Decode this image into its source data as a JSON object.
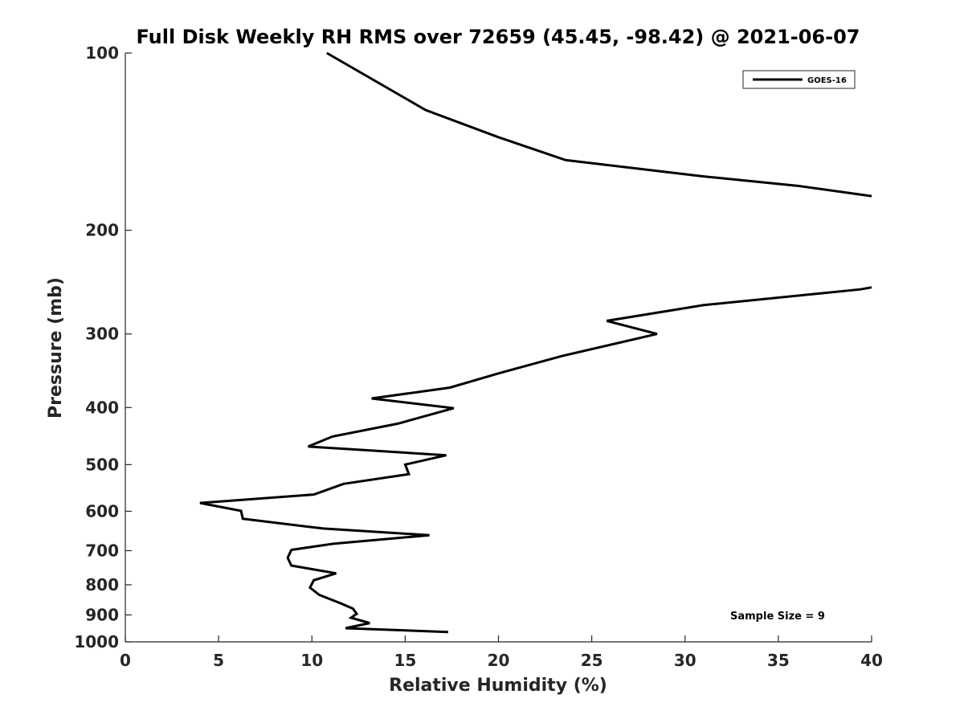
{
  "chart_data": {
    "type": "line",
    "title": "Full Disk Weekly RH RMS over 72659 (45.45, -98.42) @ 2021-06-07",
    "xlabel": "Relative Humidity (%)",
    "ylabel": "Pressure (mb)",
    "xlim": [
      0,
      40
    ],
    "ylim": [
      100,
      1000
    ],
    "yscale": "log",
    "y_reversed": true,
    "xticks": [
      0,
      5,
      10,
      15,
      20,
      25,
      30,
      35,
      40
    ],
    "xtick_labels": [
      "0",
      "5",
      "10",
      "15",
      "20",
      "25",
      "30",
      "35",
      "40"
    ],
    "yticks": [
      100,
      200,
      300,
      400,
      500,
      600,
      700,
      800,
      900,
      1000
    ],
    "ytick_labels": [
      "100",
      "200",
      "300",
      "400",
      "500",
      "600",
      "700",
      "800",
      "900",
      "1000"
    ],
    "grid": false,
    "legend": {
      "position": "top-right",
      "entries": [
        "GOES-16"
      ]
    },
    "annotation": "Sample Size = 9",
    "series": [
      {
        "name": "GOES-16",
        "color": "#000000",
        "segments": [
          {
            "x": [
              10.8,
              16.1,
              20.0,
              23.6,
              31.0,
              36.0,
              40.0
            ],
            "y": [
              100,
              125,
              139,
              152,
              162,
              168,
              175
            ]
          },
          {
            "x": [
              40.0,
              39.4,
              31.0,
              25.8,
              28.5,
              23.4,
              20.0,
              17.4,
              13.2,
              17.6,
              14.6,
              11.1,
              9.8,
              17.2,
              15.0,
              15.2,
              11.7,
              10.1,
              4.0,
              6.2,
              6.3,
              10.6,
              16.3,
              11.2,
              8.9,
              8.7,
              8.9,
              11.3,
              10.1,
              9.9,
              10.4,
              11.5,
              12.2,
              12.4,
              12.1,
              13.1,
              11.8,
              17.3
            ],
            "y": [
              250,
              252,
              268,
              285,
              300,
              327,
              350,
              370,
              386,
              401,
              426,
              448,
              466,
              482,
              500,
              519,
              539,
              562,
              581,
              599,
              618,
              642,
              659,
              681,
              698,
              720,
              742,
              765,
              786,
              809,
              832,
              859,
              878,
              896,
              910,
              929,
              948,
              962
            ]
          }
        ]
      }
    ]
  }
}
